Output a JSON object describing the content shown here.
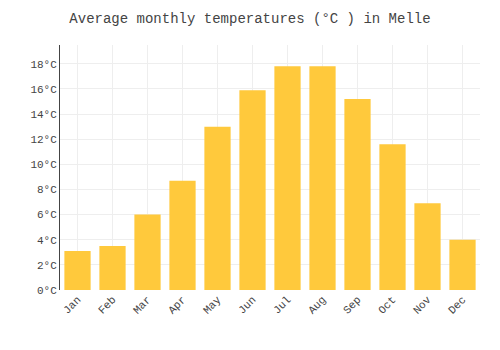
{
  "chart_data": {
    "type": "bar",
    "title": "Average monthly temperatures (°C ) in Melle",
    "categories": [
      "Jan",
      "Feb",
      "Mar",
      "Apr",
      "May",
      "Jun",
      "Jul",
      "Aug",
      "Sep",
      "Oct",
      "Nov",
      "Dec"
    ],
    "values": [
      3.1,
      3.5,
      6.0,
      8.7,
      13.0,
      15.9,
      17.8,
      17.8,
      15.2,
      11.6,
      6.9,
      4.0
    ],
    "color": "#FFC93C",
    "ylim": [
      0,
      19.5
    ],
    "yticks": [
      {
        "value": 0,
        "label": "0°C"
      },
      {
        "value": 2,
        "label": "2°C"
      },
      {
        "value": 4,
        "label": "4°C"
      },
      {
        "value": 6,
        "label": "6°C"
      },
      {
        "value": 8,
        "label": "8°C"
      },
      {
        "value": 10,
        "label": "10°C"
      },
      {
        "value": 12,
        "label": "12°C"
      },
      {
        "value": 14,
        "label": "14°C"
      },
      {
        "value": 16,
        "label": "16°C"
      },
      {
        "value": 18,
        "label": "18°C"
      }
    ],
    "grid": true
  }
}
